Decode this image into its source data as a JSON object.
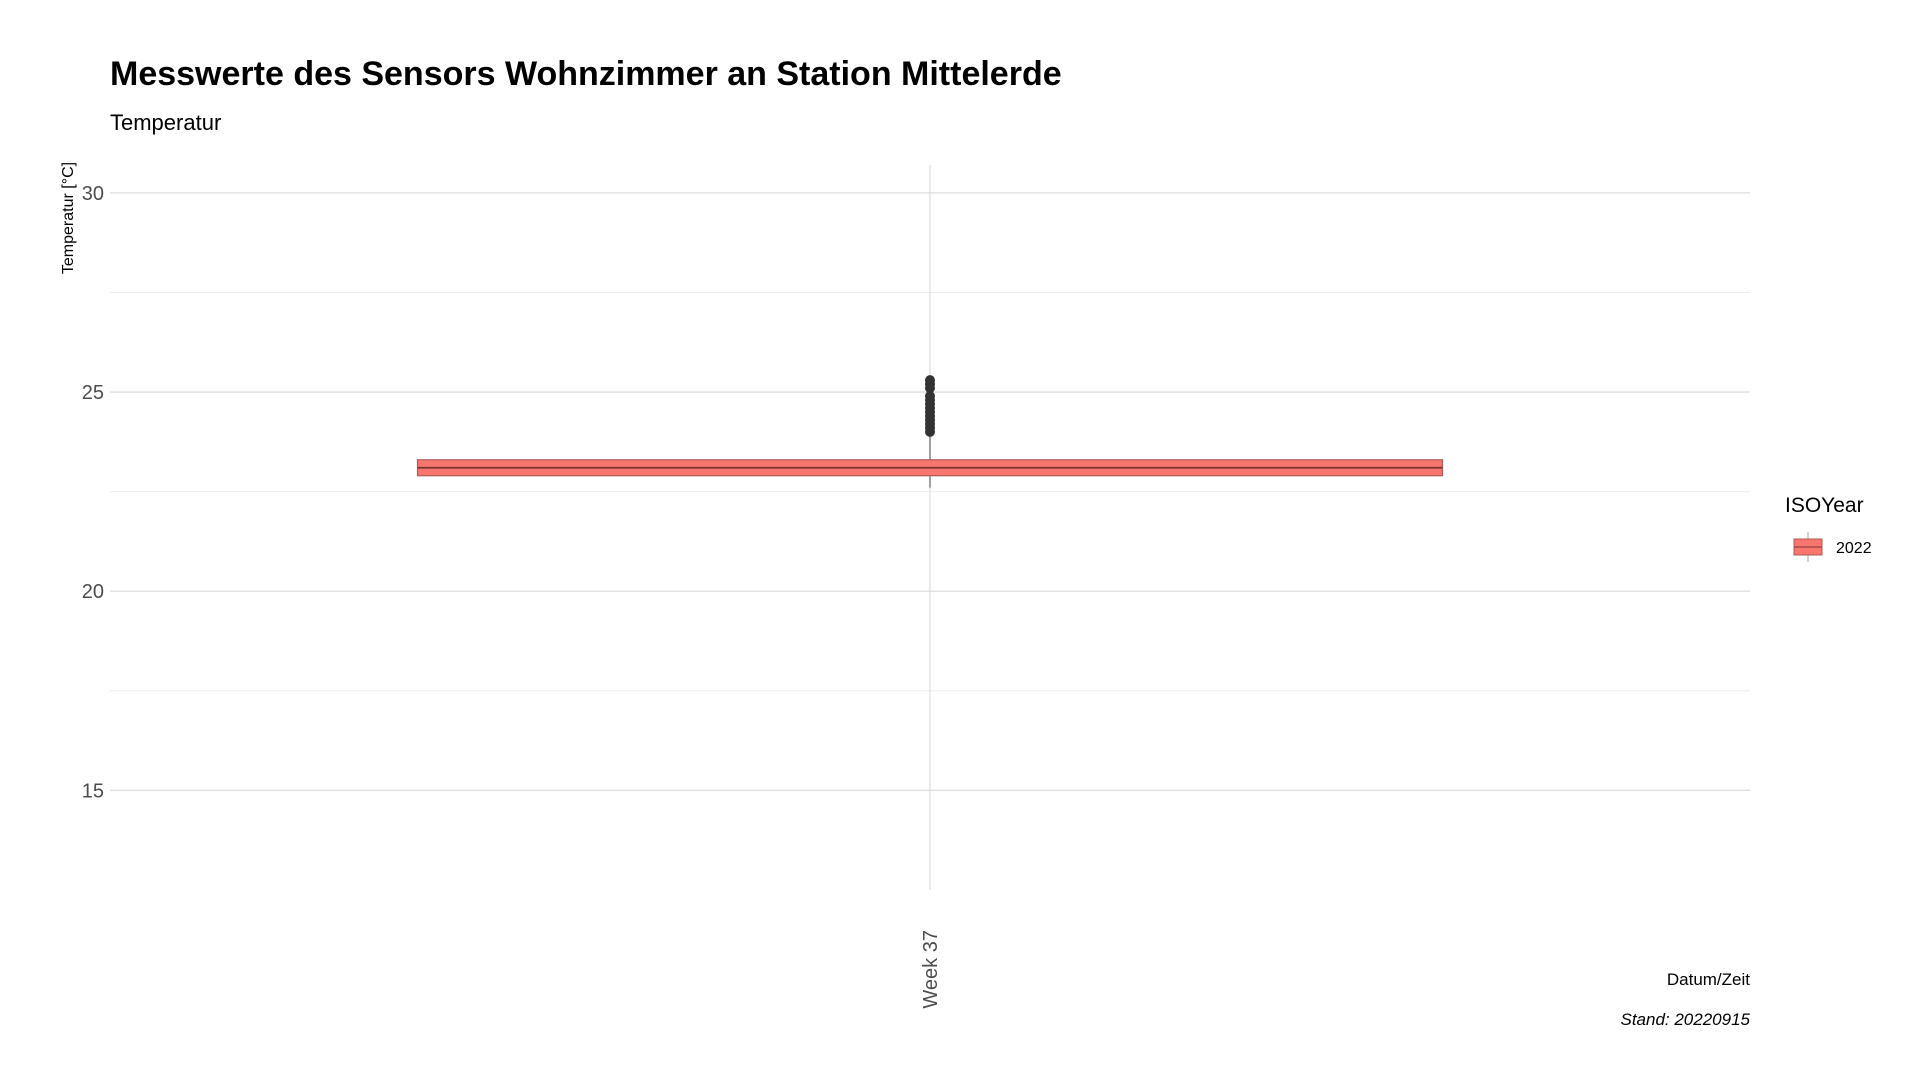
{
  "chart_data": {
    "type": "box",
    "title": "Messwerte des Sensors Wohnzimmer an Station Mittelerde",
    "subtitle": "Temperatur",
    "ylabel": "Temperatur [°C]",
    "xlabel": "Datum/Zeit",
    "caption": "Stand: 20220915",
    "ylim": [
      12.5,
      30.7
    ],
    "yticks": [
      15,
      20,
      25,
      30
    ],
    "categories": [
      "Week 37"
    ],
    "legend": {
      "title": "ISOYear",
      "entries": [
        "2022"
      ],
      "position": "right"
    },
    "grid": true,
    "series": [
      {
        "name": "2022",
        "color": "#F8766D",
        "boxes": [
          {
            "category": "Week 37",
            "whisker_low": 22.6,
            "q1": 22.9,
            "median": 23.1,
            "q3": 23.3,
            "whisker_high": 23.9,
            "outliers": [
              24.0,
              24.1,
              24.2,
              24.3,
              24.4,
              24.5,
              24.6,
              24.7,
              24.8,
              24.9,
              25.1,
              25.2,
              25.3
            ]
          }
        ]
      }
    ]
  }
}
